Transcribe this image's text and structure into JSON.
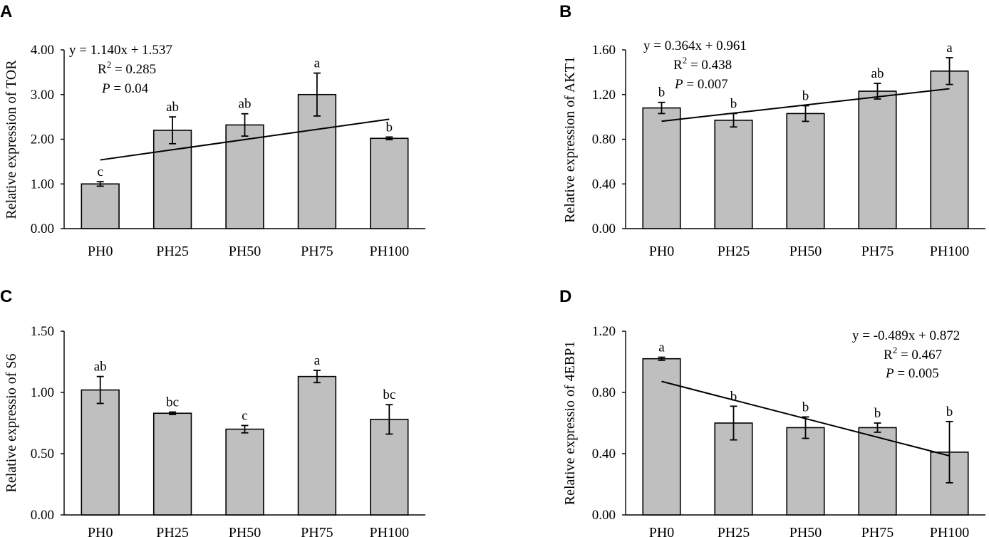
{
  "chart_data": [
    {
      "panel": "A",
      "type": "bar",
      "categories": [
        "PH0",
        "PH25",
        "PH50",
        "PH75",
        "PH100"
      ],
      "values": [
        1.0,
        2.2,
        2.32,
        3.0,
        2.02
      ],
      "errors": [
        0.05,
        0.3,
        0.25,
        0.48,
        0.03
      ],
      "significance": [
        "c",
        "ab",
        "ab",
        "a",
        "b"
      ],
      "ylabel": "Relative expression of  TOR",
      "ylim": [
        0,
        4
      ],
      "yticks": [
        "0.00",
        "1.00",
        "2.00",
        "3.00",
        "4.00"
      ],
      "trendline": {
        "equation": "y = 1.140x + 1.537",
        "r2_label": "R",
        "r2_sup": "2",
        "r2_value": " = 0.285",
        "p_label": "P",
        "p_value": " = 0.04",
        "slope": 0.228,
        "intercept": 1.537
      }
    },
    {
      "panel": "B",
      "type": "bar",
      "categories": [
        "PH0",
        "PH25",
        "PH50",
        "PH75",
        "PH100"
      ],
      "values": [
        1.08,
        0.97,
        1.03,
        1.23,
        1.41
      ],
      "errors": [
        0.05,
        0.06,
        0.07,
        0.07,
        0.12
      ],
      "significance": [
        "b",
        "b",
        "b",
        "ab",
        "a"
      ],
      "ylabel": "Relative expression of AKT1",
      "ylim": [
        0,
        1.6
      ],
      "yticks": [
        "0.00",
        "0.40",
        "0.80",
        "1.20",
        "1.60"
      ],
      "trendline": {
        "equation": "y = 0.364x + 0.961",
        "r2_label": "R",
        "r2_sup": "2",
        "r2_value": " = 0.438",
        "p_label": "P",
        "p_value": " = 0.007",
        "slope": 0.0728,
        "intercept": 0.961
      }
    },
    {
      "panel": "C",
      "type": "bar",
      "categories": [
        "PH0",
        "PH25",
        "PH50",
        "PH75",
        "PH100"
      ],
      "values": [
        1.02,
        0.83,
        0.7,
        1.13,
        0.78
      ],
      "errors": [
        0.11,
        0.01,
        0.03,
        0.05,
        0.12
      ],
      "significance": [
        "ab",
        "bc",
        "c",
        "a",
        "bc"
      ],
      "ylabel": "Relative expressio of S6",
      "ylim": [
        0,
        1.5
      ],
      "yticks": [
        "0.00",
        "0.50",
        "1.00",
        "1.50"
      ]
    },
    {
      "panel": "D",
      "type": "bar",
      "categories": [
        "PH0",
        "PH25",
        "PH50",
        "PH75",
        "PH100"
      ],
      "values": [
        1.02,
        0.6,
        0.57,
        0.57,
        0.41
      ],
      "errors": [
        0.01,
        0.11,
        0.07,
        0.03,
        0.2
      ],
      "significance": [
        "a",
        "b",
        "b",
        "b",
        "b"
      ],
      "ylabel": "Relative expressio of 4EBP1",
      "ylim": [
        0,
        1.2
      ],
      "yticks": [
        "0.00",
        "0.40",
        "0.80",
        "1.20"
      ],
      "trendline": {
        "equation": "y = -0.489x + 0.872",
        "r2_label": "R",
        "r2_sup": "2",
        "r2_value": " = 0.467",
        "p_label": "P",
        "p_value": " = 0.005",
        "slope": -0.1215,
        "intercept": 0.872
      }
    }
  ]
}
